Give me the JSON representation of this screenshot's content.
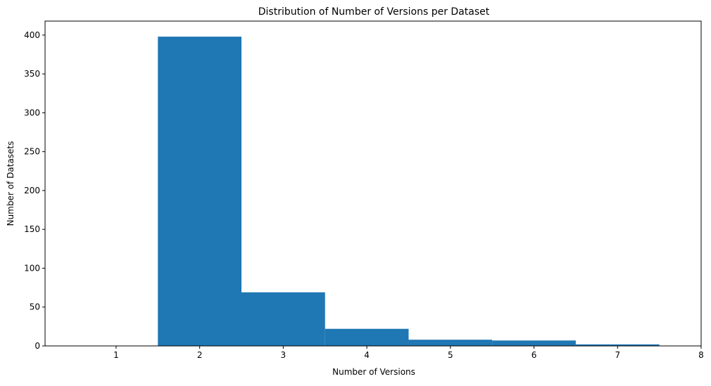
{
  "chart_data": {
    "type": "bar",
    "title": "Distribution of Number of Versions per Dataset",
    "xlabel": "Number of Versions",
    "ylabel": "Number of Datasets",
    "xlim": [
      0.15,
      8.0
    ],
    "ylim": [
      0,
      418
    ],
    "xticks": [
      1,
      2,
      3,
      4,
      5,
      6,
      7,
      8
    ],
    "yticks": [
      0,
      50,
      100,
      150,
      200,
      250,
      300,
      350,
      400
    ],
    "bin_edges": [
      1.5,
      2.5,
      3.5,
      4.5,
      5.5,
      6.5,
      7.5
    ],
    "categories": [
      "2",
      "3",
      "4",
      "5",
      "6",
      "7"
    ],
    "values": [
      398,
      69,
      22,
      8,
      7,
      2
    ],
    "bar_color": "#1f77b4",
    "grid": false,
    "legend": "none"
  }
}
